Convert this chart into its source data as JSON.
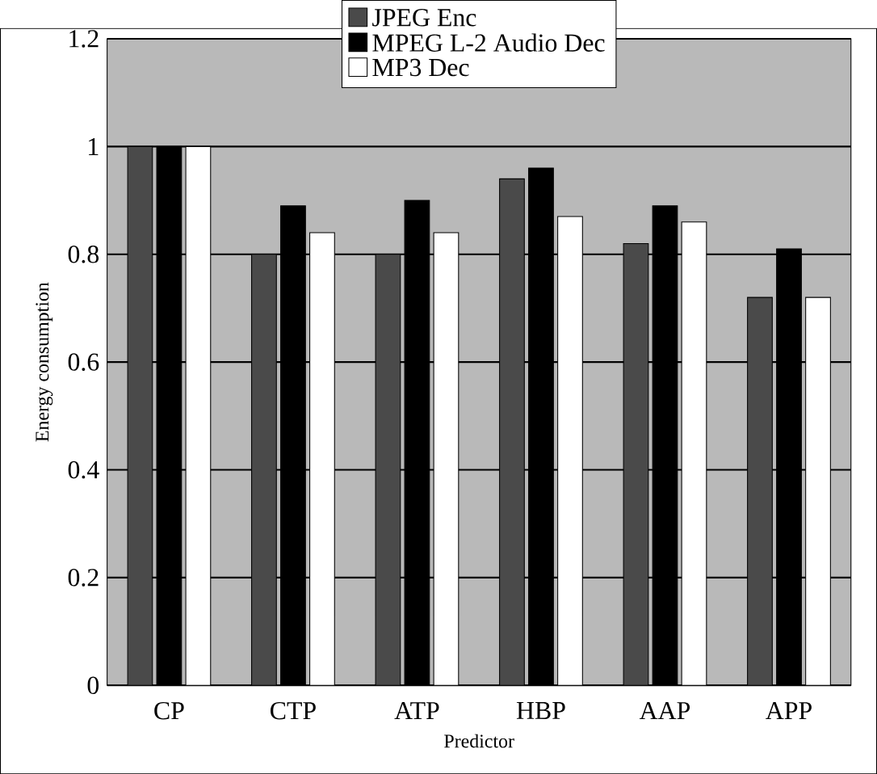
{
  "chart_data": {
    "type": "bar",
    "xlabel": "Predictor",
    "ylabel": "Energy consumption",
    "categories": [
      "CP",
      "CTP",
      "ATP",
      "HBP",
      "AAP",
      "APP"
    ],
    "series": [
      {
        "name": "JPEG Enc",
        "color": "#4a4a4a",
        "values": [
          1,
          0.8,
          0.8,
          0.94,
          0.82,
          0.72
        ]
      },
      {
        "name": "MPEG L-2 Audio Dec",
        "color": "#000000",
        "values": [
          1,
          0.89,
          0.9,
          0.96,
          0.89,
          0.81
        ]
      },
      {
        "name": "MP3 Dec",
        "color": "#ffffff",
        "values": [
          1,
          0.84,
          0.84,
          0.87,
          0.86,
          0.72
        ]
      }
    ],
    "ylim": [
      0,
      1.2
    ],
    "yticks": [
      0,
      0.2,
      0.4,
      0.6,
      0.8,
      1,
      1.2
    ],
    "grid": "y",
    "legend": "top"
  }
}
